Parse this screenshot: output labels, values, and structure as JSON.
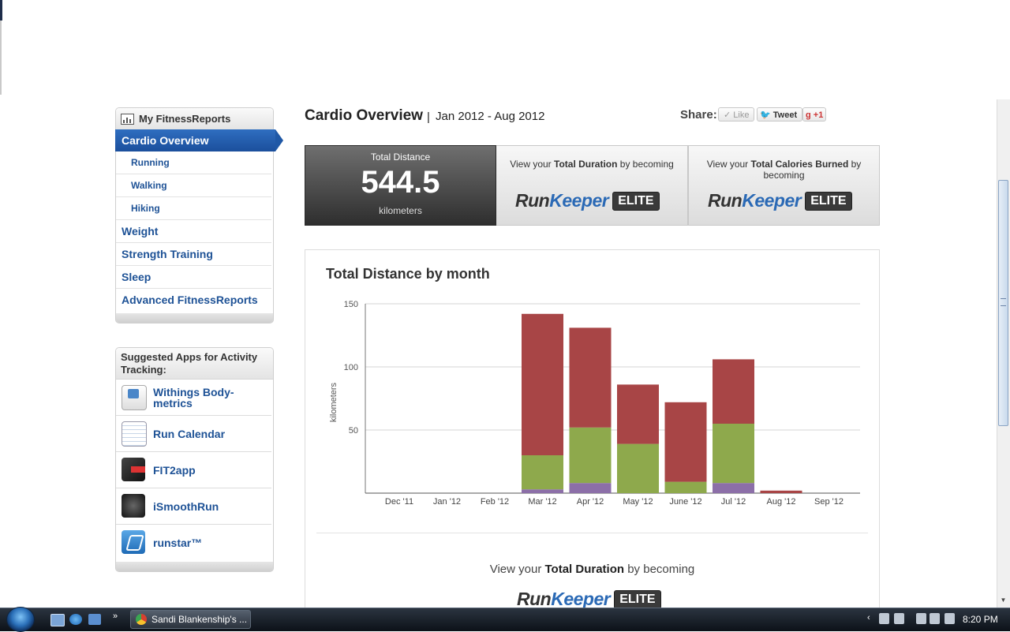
{
  "sidebar": {
    "fitness_reports": {
      "title": "My FitnessReports",
      "active_item": "Cardio Overview",
      "sub_items": [
        "Running",
        "Walking",
        "Hiking"
      ],
      "items": [
        "Weight",
        "Strength Training",
        "Sleep",
        "Advanced FitnessReports"
      ]
    },
    "suggested_apps": {
      "title": "Suggested Apps for Activity Tracking:",
      "apps": [
        {
          "label": "Withings Body-metrics",
          "icon": "withings-icon"
        },
        {
          "label": "Run Calendar",
          "icon": "calendar-icon"
        },
        {
          "label": "FIT2app",
          "icon": "fit2app-icon"
        },
        {
          "label": "iSmoothRun",
          "icon": "ismoothrun-icon"
        },
        {
          "label": "runstar™",
          "icon": "runstar-icon"
        }
      ]
    }
  },
  "header": {
    "title": "Cardio Overview",
    "separator": "|",
    "date_range": "Jan 2012 - Aug 2012",
    "share_label": "Share:",
    "like_label": "Like",
    "tweet_label": "Tweet",
    "plusone_label": "+1"
  },
  "stats": {
    "distance": {
      "label": "Total Distance",
      "value": "544.5",
      "unit": "kilometers"
    },
    "duration": {
      "prefix": "View your ",
      "bold": "Total Duration",
      "suffix": " by becoming"
    },
    "calories": {
      "prefix": "View your ",
      "bold": "Total Calories Burned",
      "suffix": " by becoming"
    }
  },
  "elite_logo": {
    "run": "Run",
    "keeper": "Keeper",
    "elite": "ELITE"
  },
  "chart_data": {
    "type": "bar",
    "stacked": true,
    "title": "Total Distance by month",
    "xlabel": "",
    "ylabel": "kilometers",
    "ylim": [
      0,
      150
    ],
    "yticks": [
      50,
      100,
      150
    ],
    "grid": true,
    "categories": [
      "Dec '11",
      "Jan '12",
      "Feb '12",
      "Mar '12",
      "Apr '12",
      "May '12",
      "June '12",
      "Jul '12",
      "Aug '12",
      "Sep '12"
    ],
    "series": [
      {
        "color": "#8c6fa8",
        "values": [
          0,
          0,
          0,
          3,
          8,
          0,
          0,
          8,
          0,
          0
        ]
      },
      {
        "color": "#8ea94c",
        "values": [
          0,
          0,
          0,
          27,
          44,
          39,
          9,
          47,
          0,
          0
        ]
      },
      {
        "color": "#a84546",
        "values": [
          0,
          0,
          0,
          112,
          79,
          47,
          63,
          51,
          2,
          0
        ]
      }
    ]
  },
  "bottom": {
    "prefix": "View your ",
    "bold": "Total Duration",
    "suffix": " by becoming"
  },
  "taskbar": {
    "window_label": "Sandi Blankenship's ...",
    "clock": "8:20 PM",
    "more": "»"
  },
  "colors": {
    "accent": "#1e5296",
    "active_nav": "#1f58a6"
  }
}
